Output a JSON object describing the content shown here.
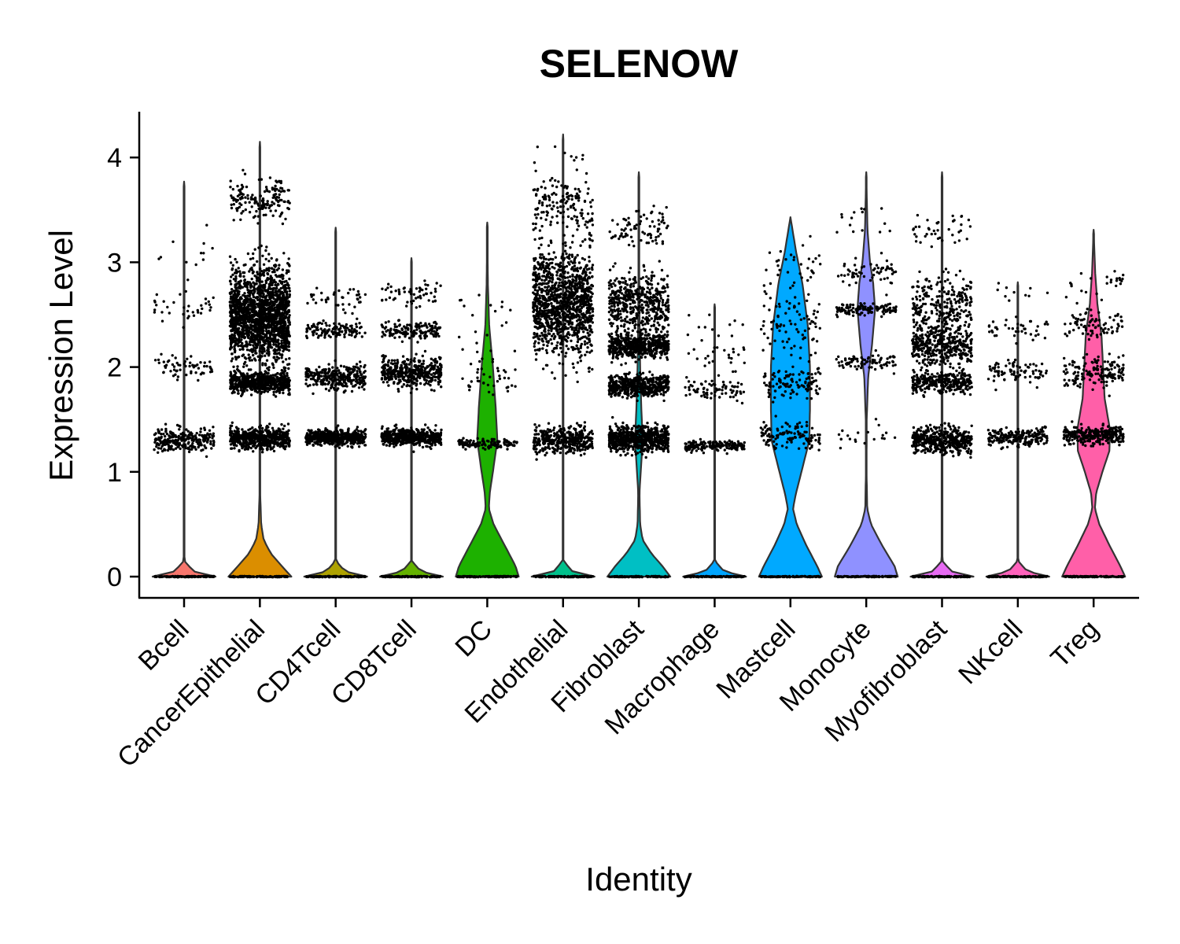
{
  "chart_data": {
    "type": "violin",
    "title": "SELENOW",
    "xlabel": "Identity",
    "ylabel": "Expression Level",
    "ylim": [
      -0.2,
      4.45
    ],
    "yticks": [
      0,
      1,
      2,
      3,
      4
    ],
    "grid": false,
    "legend": "none",
    "categories": [
      {
        "name": "Bcell",
        "color": "#F8766D",
        "max": 3.77,
        "violin": [
          [
            0,
            1.0
          ],
          [
            0.05,
            0.3
          ],
          [
            0.15,
            0.01
          ],
          [
            0.3,
            0.003
          ],
          [
            1.2,
            0.001
          ],
          [
            3.77,
            0.0
          ]
        ],
        "clusters": [
          {
            "y": 1.3,
            "s": 0.12,
            "n": 260
          },
          {
            "y": 2.0,
            "s": 0.12,
            "n": 60
          },
          {
            "y": 2.6,
            "s": 0.15,
            "n": 35
          },
          {
            "y": 3.1,
            "s": 0.3,
            "n": 12
          }
        ]
      },
      {
        "name": "CancerEpithelial",
        "color": "#DB8E00",
        "max": 4.15,
        "violin": [
          [
            0,
            1.0
          ],
          [
            0.1,
            0.7
          ],
          [
            0.22,
            0.35
          ],
          [
            0.35,
            0.12
          ],
          [
            0.5,
            0.04
          ],
          [
            0.8,
            0.01
          ],
          [
            1.3,
            0.008
          ],
          [
            2.2,
            0.01
          ],
          [
            3.0,
            0.006
          ],
          [
            4.15,
            0.0
          ]
        ],
        "clusters": [
          {
            "y": 1.32,
            "s": 0.1,
            "n": 550
          },
          {
            "y": 1.85,
            "s": 0.1,
            "n": 600
          },
          {
            "y": 2.5,
            "s": 0.45,
            "n": 1800
          },
          {
            "y": 3.6,
            "s": 0.2,
            "n": 160
          }
        ]
      },
      {
        "name": "CD4Tcell",
        "color": "#AEA200",
        "max": 3.33,
        "violin": [
          [
            0,
            1.0
          ],
          [
            0.05,
            0.3
          ],
          [
            0.15,
            0.01
          ],
          [
            0.3,
            0.003
          ],
          [
            1.2,
            0.002
          ],
          [
            3.33,
            0.0
          ]
        ],
        "clusters": [
          {
            "y": 1.33,
            "s": 0.08,
            "n": 500
          },
          {
            "y": 1.9,
            "s": 0.12,
            "n": 300
          },
          {
            "y": 2.35,
            "s": 0.08,
            "n": 120
          },
          {
            "y": 2.65,
            "s": 0.1,
            "n": 40
          }
        ]
      },
      {
        "name": "CD8Tcell",
        "color": "#64B200",
        "max": 3.04,
        "violin": [
          [
            0,
            1.0
          ],
          [
            0.05,
            0.3
          ],
          [
            0.15,
            0.01
          ],
          [
            0.3,
            0.003
          ],
          [
            1.2,
            0.002
          ],
          [
            3.04,
            0.0
          ]
        ],
        "clusters": [
          {
            "y": 1.33,
            "s": 0.08,
            "n": 550
          },
          {
            "y": 1.95,
            "s": 0.13,
            "n": 420
          },
          {
            "y": 2.35,
            "s": 0.08,
            "n": 150
          },
          {
            "y": 2.7,
            "s": 0.12,
            "n": 60
          }
        ]
      },
      {
        "name": "DC",
        "color": "#1DB100",
        "max": 3.38,
        "violin": [
          [
            0,
            1.0
          ],
          [
            0.1,
            0.9
          ],
          [
            0.3,
            0.55
          ],
          [
            0.5,
            0.2
          ],
          [
            0.65,
            0.05
          ],
          [
            0.8,
            0.08
          ],
          [
            1.0,
            0.18
          ],
          [
            1.3,
            0.32
          ],
          [
            1.6,
            0.27
          ],
          [
            2.0,
            0.18
          ],
          [
            2.4,
            0.06
          ],
          [
            2.8,
            0.02
          ],
          [
            3.38,
            0.0
          ]
        ],
        "clusters": [
          {
            "y": 1.27,
            "s": 0.05,
            "n": 130
          },
          {
            "y": 1.85,
            "s": 0.1,
            "n": 25
          },
          {
            "y": 2.05,
            "s": 0.2,
            "n": 20
          },
          {
            "y": 2.5,
            "s": 0.25,
            "n": 15
          }
        ]
      },
      {
        "name": "Endothelial",
        "color": "#00C08B",
        "max": 4.22,
        "violin": [
          [
            0,
            1.0
          ],
          [
            0.05,
            0.3
          ],
          [
            0.15,
            0.01
          ],
          [
            0.3,
            0.003
          ],
          [
            1.2,
            0.002
          ],
          [
            2.5,
            0.003
          ],
          [
            4.22,
            0.0
          ]
        ],
        "clusters": [
          {
            "y": 1.3,
            "s": 0.12,
            "n": 400
          },
          {
            "y": 2.6,
            "s": 0.5,
            "n": 1200
          },
          {
            "y": 3.5,
            "s": 0.3,
            "n": 150
          },
          {
            "y": 4.0,
            "s": 0.15,
            "n": 10
          }
        ]
      },
      {
        "name": "Fibroblast",
        "color": "#00BFC4",
        "max": 3.86,
        "violin": [
          [
            0,
            1.0
          ],
          [
            0.1,
            0.75
          ],
          [
            0.22,
            0.4
          ],
          [
            0.35,
            0.12
          ],
          [
            0.5,
            0.04
          ],
          [
            0.8,
            0.02
          ],
          [
            1.0,
            0.06
          ],
          [
            1.3,
            0.12
          ],
          [
            1.6,
            0.08
          ],
          [
            2.0,
            0.04
          ],
          [
            2.5,
            0.02
          ],
          [
            3.0,
            0.01
          ],
          [
            3.86,
            0.0
          ]
        ],
        "clusters": [
          {
            "y": 1.32,
            "s": 0.12,
            "n": 700
          },
          {
            "y": 1.82,
            "s": 0.1,
            "n": 500
          },
          {
            "y": 2.2,
            "s": 0.12,
            "n": 500
          },
          {
            "y": 2.6,
            "s": 0.3,
            "n": 500
          },
          {
            "y": 3.3,
            "s": 0.2,
            "n": 80
          }
        ]
      },
      {
        "name": "Macrophage",
        "color": "#00A5FF",
        "max": 2.6,
        "violin": [
          [
            0,
            1.0
          ],
          [
            0.05,
            0.3
          ],
          [
            0.15,
            0.01
          ],
          [
            0.3,
            0.003
          ],
          [
            1.2,
            0.002
          ],
          [
            2.6,
            0.0
          ]
        ],
        "clusters": [
          {
            "y": 1.25,
            "s": 0.05,
            "n": 180
          },
          {
            "y": 1.78,
            "s": 0.08,
            "n": 70
          },
          {
            "y": 2.05,
            "s": 0.2,
            "n": 30
          },
          {
            "y": 2.4,
            "s": 0.15,
            "n": 10
          }
        ]
      },
      {
        "name": "Mastcell",
        "color": "#00A9FF",
        "max": 3.43,
        "violin": [
          [
            0,
            1.0
          ],
          [
            0.1,
            0.85
          ],
          [
            0.3,
            0.5
          ],
          [
            0.5,
            0.2
          ],
          [
            0.65,
            0.08
          ],
          [
            0.8,
            0.18
          ],
          [
            1.0,
            0.35
          ],
          [
            1.3,
            0.6
          ],
          [
            1.6,
            0.62
          ],
          [
            2.0,
            0.62
          ],
          [
            2.4,
            0.55
          ],
          [
            2.8,
            0.38
          ],
          [
            3.1,
            0.18
          ],
          [
            3.43,
            0.0
          ]
        ],
        "clusters": [
          {
            "y": 1.35,
            "s": 0.12,
            "n": 120
          },
          {
            "y": 1.85,
            "s": 0.15,
            "n": 110
          },
          {
            "y": 2.4,
            "s": 0.35,
            "n": 90
          },
          {
            "y": 3.0,
            "s": 0.25,
            "n": 30
          }
        ]
      },
      {
        "name": "Monocyte",
        "color": "#8F91FF",
        "max": 3.86,
        "violin": [
          [
            0,
            1.0
          ],
          [
            0.1,
            0.9
          ],
          [
            0.3,
            0.5
          ],
          [
            0.5,
            0.15
          ],
          [
            0.65,
            0.03
          ],
          [
            1.0,
            0.01
          ],
          [
            1.5,
            0.015
          ],
          [
            1.9,
            0.06
          ],
          [
            2.2,
            0.18
          ],
          [
            2.55,
            0.28
          ],
          [
            2.8,
            0.22
          ],
          [
            3.0,
            0.12
          ],
          [
            3.3,
            0.04
          ],
          [
            3.86,
            0.0
          ]
        ],
        "clusters": [
          {
            "y": 1.35,
            "s": 0.12,
            "n": 20
          },
          {
            "y": 2.05,
            "s": 0.08,
            "n": 80
          },
          {
            "y": 2.55,
            "s": 0.06,
            "n": 120
          },
          {
            "y": 2.9,
            "s": 0.15,
            "n": 60
          },
          {
            "y": 3.4,
            "s": 0.2,
            "n": 15
          }
        ]
      },
      {
        "name": "Myofibroblast",
        "color": "#E76BF3",
        "max": 3.86,
        "violin": [
          [
            0,
            1.0
          ],
          [
            0.05,
            0.3
          ],
          [
            0.15,
            0.01
          ],
          [
            0.3,
            0.003
          ],
          [
            1.2,
            0.002
          ],
          [
            2.2,
            0.003
          ],
          [
            3.86,
            0.0
          ]
        ],
        "clusters": [
          {
            "y": 1.3,
            "s": 0.12,
            "n": 450
          },
          {
            "y": 1.85,
            "s": 0.1,
            "n": 300
          },
          {
            "y": 2.2,
            "s": 0.2,
            "n": 400
          },
          {
            "y": 2.6,
            "s": 0.3,
            "n": 250
          },
          {
            "y": 3.3,
            "s": 0.2,
            "n": 40
          }
        ]
      },
      {
        "name": "NKcell",
        "color": "#FF62BC",
        "max": 2.81,
        "violin": [
          [
            0,
            1.0
          ],
          [
            0.05,
            0.3
          ],
          [
            0.15,
            0.01
          ],
          [
            0.3,
            0.003
          ],
          [
            1.2,
            0.002
          ],
          [
            2.81,
            0.0
          ]
        ],
        "clusters": [
          {
            "y": 1.33,
            "s": 0.08,
            "n": 220
          },
          {
            "y": 1.95,
            "s": 0.12,
            "n": 80
          },
          {
            "y": 2.35,
            "s": 0.1,
            "n": 40
          },
          {
            "y": 2.7,
            "s": 0.1,
            "n": 10
          }
        ]
      },
      {
        "name": "Treg",
        "color": "#FF5FA8",
        "max": 3.31,
        "violin": [
          [
            0,
            1.0
          ],
          [
            0.1,
            0.85
          ],
          [
            0.3,
            0.5
          ],
          [
            0.5,
            0.18
          ],
          [
            0.65,
            0.04
          ],
          [
            0.8,
            0.08
          ],
          [
            1.0,
            0.28
          ],
          [
            1.2,
            0.5
          ],
          [
            1.4,
            0.52
          ],
          [
            1.7,
            0.35
          ],
          [
            2.0,
            0.3
          ],
          [
            2.3,
            0.25
          ],
          [
            2.6,
            0.12
          ],
          [
            2.9,
            0.05
          ],
          [
            3.31,
            0.0
          ]
        ],
        "clusters": [
          {
            "y": 1.35,
            "s": 0.08,
            "n": 300
          },
          {
            "y": 1.95,
            "s": 0.15,
            "n": 150
          },
          {
            "y": 2.4,
            "s": 0.15,
            "n": 80
          },
          {
            "y": 2.8,
            "s": 0.15,
            "n": 25
          }
        ]
      }
    ]
  }
}
